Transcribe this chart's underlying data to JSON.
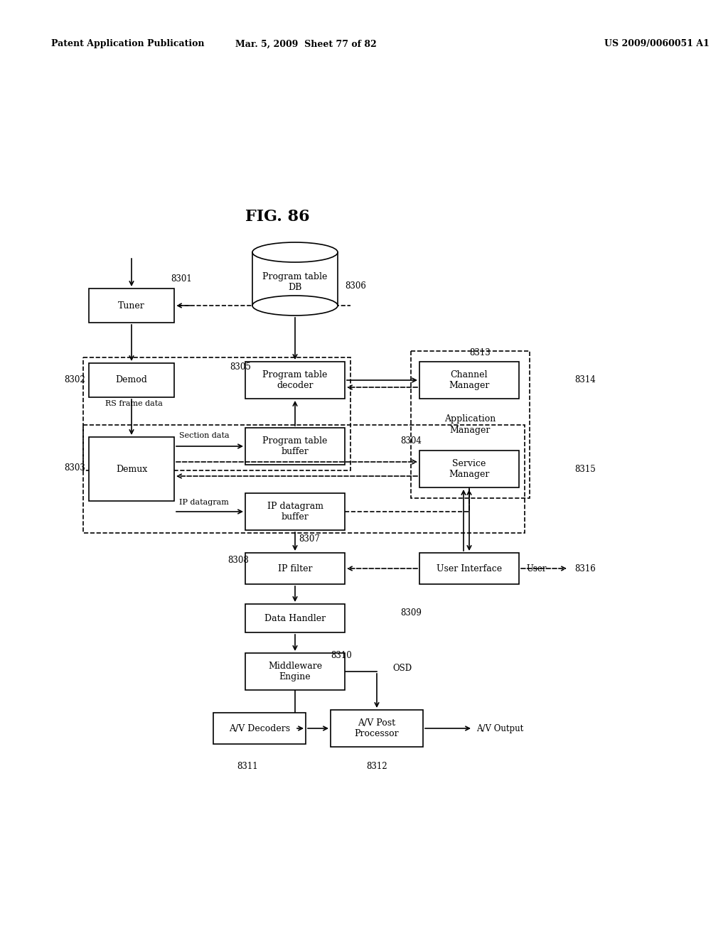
{
  "title": "FIG. 86",
  "header_left": "Patent Application Publication",
  "header_mid": "Mar. 5, 2009  Sheet 77 of 82",
  "header_right": "US 2009/0060051 A1",
  "background_color": "#ffffff"
}
